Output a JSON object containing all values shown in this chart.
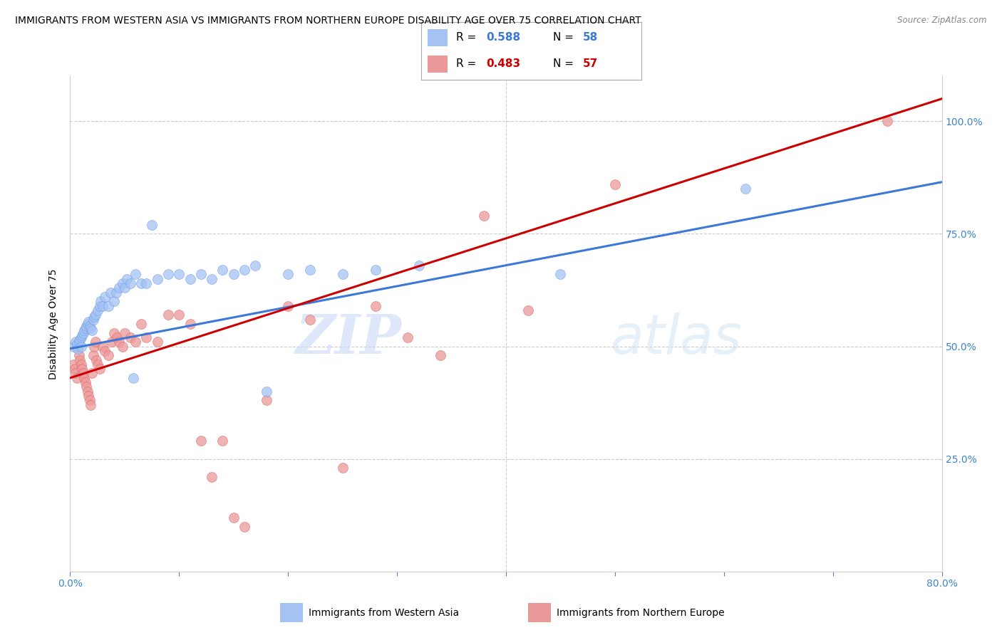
{
  "title": "IMMIGRANTS FROM WESTERN ASIA VS IMMIGRANTS FROM NORTHERN EUROPE DISABILITY AGE OVER 75 CORRELATION CHART",
  "source": "Source: ZipAtlas.com",
  "ylabel_left": "Disability Age Over 75",
  "label_blue": "Immigrants from Western Asia",
  "label_pink": "Immigrants from Northern Europe",
  "watermark_zip": "ZIP",
  "watermark_atlas": "atlas",
  "xlim": [
    0.0,
    0.8
  ],
  "ylim": [
    0.0,
    1.1
  ],
  "blue_color": "#a4c2f4",
  "blue_color_edge": "#6d9eeb",
  "pink_color": "#ea9999",
  "pink_color_edge": "#e06666",
  "blue_line_color": "#3c78d8",
  "pink_line_color": "#cc0000",
  "legend_R_blue": "0.588",
  "legend_N_blue": "58",
  "legend_R_pink": "0.483",
  "legend_N_pink": "57",
  "background_color": "#ffffff",
  "grid_color": "#cccccc",
  "title_fontsize": 10.5,
  "tick_color": "#3d85c8",
  "blue_scatter_x": [
    0.003,
    0.005,
    0.006,
    0.007,
    0.008,
    0.009,
    0.01,
    0.01,
    0.011,
    0.012,
    0.013,
    0.014,
    0.015,
    0.016,
    0.017,
    0.018,
    0.019,
    0.02,
    0.021,
    0.022,
    0.023,
    0.025,
    0.027,
    0.028,
    0.03,
    0.032,
    0.035,
    0.037,
    0.04,
    0.042,
    0.045,
    0.048,
    0.05,
    0.052,
    0.055,
    0.058,
    0.06,
    0.065,
    0.07,
    0.075,
    0.08,
    0.09,
    0.1,
    0.11,
    0.12,
    0.13,
    0.14,
    0.15,
    0.16,
    0.17,
    0.18,
    0.2,
    0.22,
    0.25,
    0.28,
    0.32,
    0.45,
    0.62
  ],
  "blue_scatter_y": [
    0.5,
    0.51,
    0.505,
    0.495,
    0.51,
    0.515,
    0.52,
    0.5,
    0.525,
    0.53,
    0.535,
    0.54,
    0.545,
    0.55,
    0.555,
    0.545,
    0.54,
    0.535,
    0.56,
    0.565,
    0.57,
    0.58,
    0.59,
    0.6,
    0.59,
    0.61,
    0.59,
    0.62,
    0.6,
    0.62,
    0.63,
    0.64,
    0.63,
    0.65,
    0.64,
    0.43,
    0.66,
    0.64,
    0.64,
    0.77,
    0.65,
    0.66,
    0.66,
    0.65,
    0.66,
    0.65,
    0.67,
    0.66,
    0.67,
    0.68,
    0.4,
    0.66,
    0.67,
    0.66,
    0.67,
    0.68,
    0.66,
    0.85
  ],
  "pink_scatter_x": [
    0.003,
    0.004,
    0.005,
    0.006,
    0.007,
    0.008,
    0.009,
    0.01,
    0.011,
    0.012,
    0.013,
    0.014,
    0.015,
    0.016,
    0.017,
    0.018,
    0.019,
    0.02,
    0.021,
    0.022,
    0.023,
    0.024,
    0.025,
    0.027,
    0.03,
    0.032,
    0.035,
    0.038,
    0.04,
    0.043,
    0.045,
    0.048,
    0.05,
    0.055,
    0.06,
    0.065,
    0.07,
    0.08,
    0.09,
    0.1,
    0.11,
    0.12,
    0.13,
    0.14,
    0.15,
    0.16,
    0.18,
    0.2,
    0.22,
    0.25,
    0.28,
    0.31,
    0.34,
    0.38,
    0.42,
    0.5,
    0.75
  ],
  "pink_scatter_y": [
    0.46,
    0.45,
    0.44,
    0.43,
    0.5,
    0.48,
    0.47,
    0.46,
    0.45,
    0.44,
    0.43,
    0.42,
    0.41,
    0.4,
    0.39,
    0.38,
    0.37,
    0.44,
    0.48,
    0.5,
    0.51,
    0.47,
    0.46,
    0.45,
    0.5,
    0.49,
    0.48,
    0.51,
    0.53,
    0.52,
    0.51,
    0.5,
    0.53,
    0.52,
    0.51,
    0.55,
    0.52,
    0.51,
    0.57,
    0.57,
    0.55,
    0.29,
    0.21,
    0.29,
    0.12,
    0.1,
    0.38,
    0.59,
    0.56,
    0.23,
    0.59,
    0.52,
    0.48,
    0.79,
    0.58,
    0.86,
    1.0
  ],
  "blue_line_x0": 0.0,
  "blue_line_y0": 0.495,
  "blue_line_x1": 0.8,
  "blue_line_y1": 0.865,
  "pink_line_x0": 0.0,
  "pink_line_y0": 0.43,
  "pink_line_x1": 0.8,
  "pink_line_y1": 1.05
}
